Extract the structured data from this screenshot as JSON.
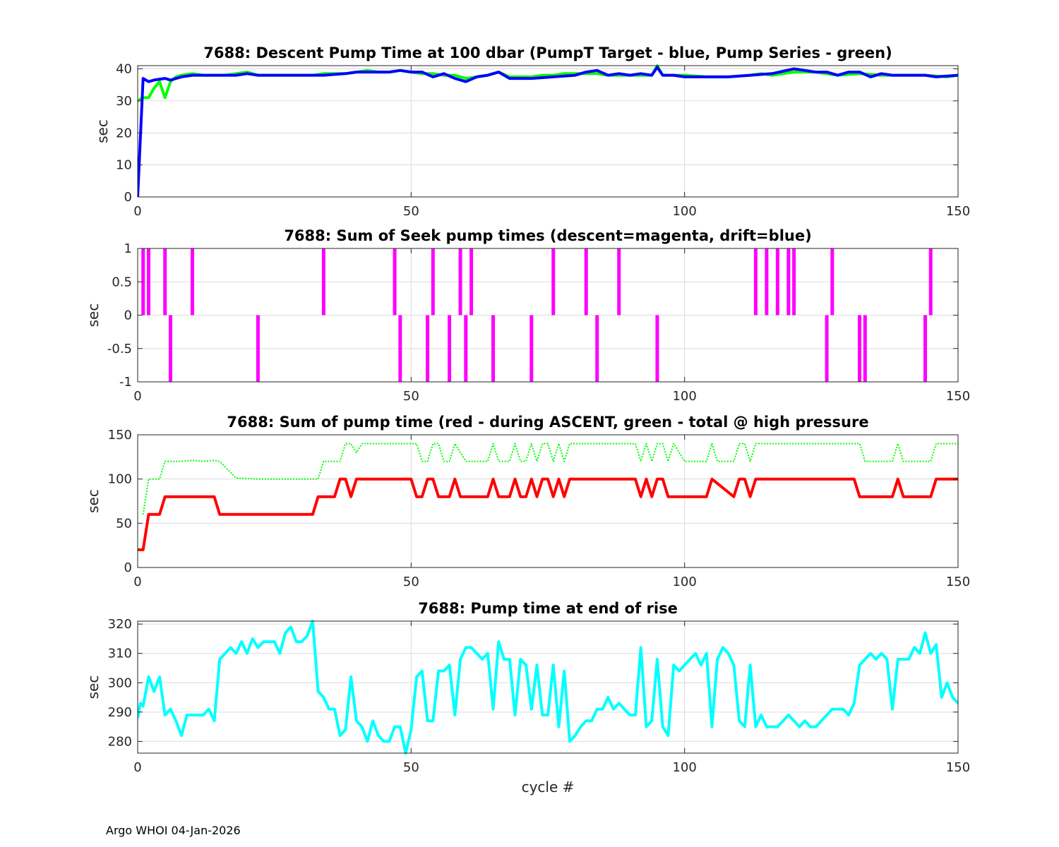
{
  "footer": "Argo WHOI 04-Jan-2026",
  "chart_data": [
    {
      "type": "line",
      "title": "7688: Descent Pump Time at 100 dbar (PumpT Target - blue, Pump Series - green)",
      "xlabel": "",
      "ylabel": "sec",
      "xlim": [
        0,
        150
      ],
      "ylim": [
        0,
        41
      ],
      "xticks": [
        0,
        50,
        100,
        150
      ],
      "yticks": [
        0,
        10,
        20,
        30,
        40
      ],
      "series": [
        {
          "name": "Pump Series",
          "color": "#00ff00",
          "style": "solid",
          "x": [
            0,
            1,
            2,
            3,
            4,
            5,
            6,
            7,
            8,
            10,
            12,
            14,
            16,
            18,
            20,
            22,
            24,
            26,
            28,
            30,
            32,
            34,
            36,
            38,
            40,
            42,
            44,
            46,
            48,
            50,
            52,
            54,
            56,
            58,
            60,
            62,
            64,
            66,
            68,
            70,
            72,
            74,
            76,
            78,
            80,
            82,
            84,
            86,
            88,
            90,
            92,
            94,
            95,
            96,
            98,
            100,
            104,
            108,
            112,
            114,
            116,
            118,
            120,
            124,
            128,
            132,
            136,
            140,
            144,
            148,
            150
          ],
          "y": [
            30,
            31,
            31,
            34,
            36,
            31,
            36,
            37.5,
            38,
            38.5,
            38,
            38,
            38,
            38.5,
            39,
            38,
            38,
            38,
            38,
            38,
            38,
            38.5,
            38.5,
            38.5,
            39,
            39.5,
            39,
            39,
            39.5,
            39,
            38.5,
            38.5,
            38,
            38,
            37,
            37.5,
            38,
            39,
            37.5,
            37.5,
            37.5,
            38,
            38,
            38.5,
            38.5,
            38.5,
            38.5,
            38,
            38,
            38,
            38,
            38,
            41,
            38,
            38,
            38,
            37.5,
            37.5,
            38,
            38.5,
            38,
            38.5,
            39,
            39,
            38,
            38.5,
            38,
            38,
            38,
            37.5,
            38
          ]
        },
        {
          "name": "PumpT Target",
          "color": "#0000ff",
          "style": "solid",
          "x": [
            0,
            1,
            2,
            3,
            5,
            6,
            8,
            10,
            14,
            18,
            20,
            22,
            26,
            30,
            34,
            38,
            40,
            44,
            46,
            48,
            50,
            52,
            54,
            56,
            58,
            60,
            62,
            64,
            66,
            68,
            70,
            72,
            76,
            80,
            82,
            84,
            86,
            88,
            90,
            92,
            94,
            95,
            96,
            98,
            100,
            104,
            108,
            112,
            116,
            120,
            124,
            126,
            128,
            130,
            132,
            134,
            136,
            138,
            140,
            144,
            146,
            150
          ],
          "y": [
            0,
            37,
            36,
            36.5,
            37,
            36.5,
            37.5,
            38,
            38,
            38,
            38.5,
            38,
            38,
            38,
            38,
            38.5,
            39,
            39,
            39,
            39.5,
            39,
            39,
            37.5,
            38.5,
            37,
            36,
            37.5,
            38,
            39,
            37,
            37,
            37,
            37.5,
            38,
            39,
            39.5,
            38,
            38.5,
            38,
            38.5,
            38,
            40.5,
            38,
            38,
            37.5,
            37.5,
            37.5,
            38,
            38.5,
            40,
            39,
            39,
            38,
            39,
            39,
            37.5,
            38.5,
            38,
            38,
            38,
            37.5,
            38
          ]
        }
      ]
    },
    {
      "type": "bar",
      "title": "7688: Sum of Seek pump times (descent=magenta, drift=blue)",
      "xlabel": "",
      "ylabel": "sec",
      "xlim": [
        0,
        150
      ],
      "ylim": [
        -1,
        1
      ],
      "xticks": [
        0,
        50,
        100,
        150
      ],
      "yticks": [
        -1,
        -0.5,
        0,
        0.5,
        1
      ],
      "yticklabels": [
        "-1",
        "-0.5",
        "0",
        "0.5",
        "1"
      ],
      "series": [
        {
          "name": "descent",
          "color": "#ff00ff",
          "x": [
            1,
            2,
            5,
            6,
            10,
            22,
            34,
            47,
            48,
            53,
            54,
            57,
            59,
            60,
            61,
            65,
            72,
            76,
            82,
            84,
            88,
            95,
            113,
            115,
            117,
            119,
            120,
            126,
            127,
            132,
            133,
            144,
            145
          ],
          "values": [
            1,
            1,
            1,
            -1,
            1,
            -1,
            1,
            1,
            -1,
            -1,
            1,
            -1,
            1,
            -1,
            1,
            -1,
            -1,
            1,
            1,
            -1,
            1,
            -1,
            1,
            1,
            1,
            1,
            1,
            -1,
            1,
            -1,
            -1,
            -1,
            1
          ]
        }
      ]
    },
    {
      "type": "line",
      "title": "7688: Sum of pump time (red - during ASCENT, green - total @ high pressure",
      "xlabel": "",
      "ylabel": "sec",
      "xlim": [
        0,
        150
      ],
      "ylim": [
        0,
        150
      ],
      "xticks": [
        0,
        50,
        100,
        150
      ],
      "yticks": [
        0,
        50,
        100,
        150
      ],
      "series": [
        {
          "name": "total @ high pressure",
          "color": "#00ff00",
          "style": "dotted",
          "x": [
            1,
            2,
            3,
            4,
            5,
            6,
            8,
            10,
            12,
            14,
            15,
            18,
            22,
            26,
            30,
            33,
            34,
            36,
            37,
            38,
            39,
            40,
            41,
            44,
            48,
            50,
            51,
            52,
            53,
            54,
            55,
            56,
            57,
            58,
            60,
            62,
            64,
            65,
            66,
            67,
            68,
            69,
            70,
            71,
            72,
            73,
            74,
            75,
            76,
            77,
            78,
            79,
            80,
            82,
            86,
            88,
            91,
            92,
            93,
            94,
            95,
            96,
            97,
            98,
            100,
            103,
            104,
            105,
            106,
            107,
            109,
            110,
            111,
            112,
            113,
            116,
            120,
            124,
            128,
            131,
            132,
            133,
            136,
            138,
            139,
            140,
            142,
            144,
            145,
            146,
            150
          ],
          "y": [
            60,
            100,
            100,
            100,
            120,
            120,
            120,
            121,
            120,
            121,
            120,
            101,
            100,
            100,
            100,
            100,
            120,
            120,
            120,
            140,
            140,
            130,
            140,
            140,
            140,
            140,
            140,
            120,
            120,
            140,
            140,
            120,
            120,
            140,
            120,
            120,
            120,
            140,
            120,
            120,
            120,
            140,
            120,
            120,
            140,
            120,
            140,
            140,
            120,
            140,
            120,
            140,
            140,
            140,
            140,
            140,
            140,
            120,
            140,
            120,
            140,
            140,
            120,
            140,
            120,
            120,
            120,
            140,
            120,
            120,
            120,
            140,
            140,
            120,
            140,
            140,
            140,
            140,
            140,
            140,
            140,
            120,
            120,
            120,
            140,
            120,
            120,
            120,
            120,
            140,
            140
          ]
        },
        {
          "name": "during ASCENT",
          "color": "#ff0000",
          "style": "solid",
          "x": [
            0,
            1,
            2,
            4,
            5,
            10,
            14,
            15,
            20,
            30,
            32,
            33,
            36,
            37,
            38,
            39,
            40,
            41,
            50,
            51,
            52,
            53,
            54,
            55,
            56,
            57,
            58,
            59,
            60,
            64,
            65,
            66,
            67,
            68,
            69,
            70,
            71,
            72,
            73,
            74,
            75,
            76,
            77,
            78,
            79,
            80,
            91,
            92,
            93,
            94,
            95,
            96,
            97,
            98,
            103,
            104,
            105,
            109,
            110,
            111,
            112,
            113,
            131,
            132,
            138,
            139,
            140,
            145,
            146,
            150
          ],
          "y": [
            20,
            20,
            60,
            60,
            80,
            80,
            80,
            60,
            60,
            60,
            60,
            80,
            80,
            100,
            100,
            80,
            100,
            100,
            100,
            80,
            80,
            100,
            100,
            80,
            80,
            80,
            100,
            80,
            80,
            80,
            100,
            80,
            80,
            80,
            100,
            80,
            80,
            100,
            80,
            100,
            100,
            80,
            100,
            80,
            100,
            100,
            100,
            80,
            100,
            80,
            100,
            100,
            80,
            80,
            80,
            80,
            100,
            80,
            100,
            100,
            80,
            100,
            100,
            80,
            80,
            100,
            80,
            80,
            100,
            100
          ]
        }
      ]
    },
    {
      "type": "line",
      "title": "7688: Pump time at end of rise",
      "xlabel": "cycle #",
      "ylabel": "sec",
      "xlim": [
        0,
        150
      ],
      "ylim": [
        276,
        321
      ],
      "xticks": [
        0,
        50,
        100,
        150
      ],
      "yticks": [
        280,
        290,
        300,
        310,
        320
      ],
      "series": [
        {
          "name": "end of rise",
          "color": "#00ffff",
          "style": "solid",
          "x": [
            0,
            0.5,
            1,
            2,
            3,
            4,
            5,
            6,
            7,
            8,
            9,
            10,
            11,
            12,
            13,
            14,
            15,
            16,
            17,
            18,
            19,
            20,
            21,
            22,
            23,
            24,
            25,
            26,
            27,
            28,
            29,
            30,
            31,
            32,
            33,
            34,
            35,
            36,
            37,
            38,
            39,
            40,
            41,
            42,
            43,
            44,
            45,
            46,
            47,
            48,
            49,
            50,
            51,
            52,
            53,
            54,
            55,
            56,
            57,
            58,
            59,
            60,
            61,
            62,
            63,
            64,
            65,
            66,
            67,
            68,
            69,
            70,
            71,
            72,
            73,
            74,
            75,
            76,
            77,
            78,
            79,
            80,
            81,
            82,
            83,
            84,
            85,
            86,
            87,
            88,
            89,
            90,
            91,
            92,
            93,
            94,
            95,
            96,
            97,
            98,
            99,
            100,
            101,
            102,
            103,
            104,
            105,
            106,
            107,
            108,
            109,
            110,
            111,
            112,
            113,
            114,
            115,
            116,
            117,
            118,
            119,
            120,
            121,
            122,
            123,
            124,
            125,
            126,
            127,
            128,
            129,
            130,
            131,
            132,
            133,
            134,
            135,
            136,
            137,
            138,
            139,
            140,
            141,
            142,
            143,
            144,
            145,
            146,
            147,
            148,
            149,
            150
          ],
          "y": [
            288,
            293,
            292,
            302,
            297,
            302,
            289,
            291,
            287,
            282,
            289,
            289,
            289,
            289,
            291,
            287,
            308,
            310,
            312,
            310,
            314,
            310,
            315,
            312,
            314,
            314,
            314,
            310,
            317,
            319,
            314,
            314,
            316,
            321,
            297,
            295,
            291,
            291,
            282,
            284,
            302,
            287,
            285,
            280,
            287,
            282,
            280,
            280,
            285,
            285,
            276,
            284,
            302,
            304,
            287,
            287,
            304,
            304,
            306,
            289,
            308,
            312,
            312,
            310,
            308,
            310,
            291,
            314,
            308,
            308,
            289,
            308,
            306,
            291,
            306,
            289,
            289,
            306,
            285,
            304,
            280,
            282,
            285,
            287,
            287,
            291,
            291,
            295,
            291,
            293,
            291,
            289,
            289,
            312,
            285,
            287,
            308,
            285,
            282,
            306,
            304,
            306,
            308,
            310,
            306,
            310,
            285,
            308,
            312,
            310,
            306,
            287,
            285,
            306,
            285,
            289,
            285,
            285,
            285,
            287,
            289,
            287,
            285,
            287,
            285,
            285,
            287,
            289,
            291,
            291,
            291,
            289,
            293,
            306,
            308,
            310,
            308,
            310,
            308,
            291,
            308,
            308,
            308,
            312,
            310,
            317,
            310,
            313,
            295,
            300,
            295,
            293
          ]
        }
      ]
    }
  ]
}
